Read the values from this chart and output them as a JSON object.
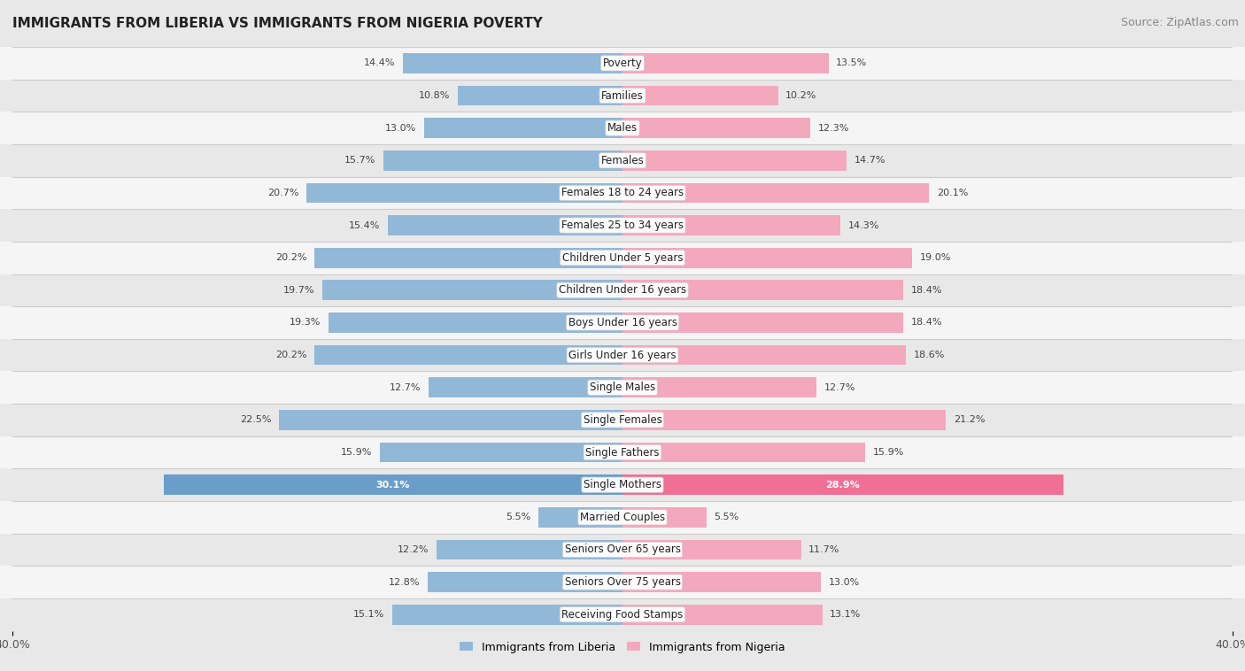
{
  "title": "IMMIGRANTS FROM LIBERIA VS IMMIGRANTS FROM NIGERIA POVERTY",
  "source": "Source: ZipAtlas.com",
  "categories": [
    "Poverty",
    "Families",
    "Males",
    "Females",
    "Females 18 to 24 years",
    "Females 25 to 34 years",
    "Children Under 5 years",
    "Children Under 16 years",
    "Boys Under 16 years",
    "Girls Under 16 years",
    "Single Males",
    "Single Females",
    "Single Fathers",
    "Single Mothers",
    "Married Couples",
    "Seniors Over 65 years",
    "Seniors Over 75 years",
    "Receiving Food Stamps"
  ],
  "liberia_values": [
    14.4,
    10.8,
    13.0,
    15.7,
    20.7,
    15.4,
    20.2,
    19.7,
    19.3,
    20.2,
    12.7,
    22.5,
    15.9,
    30.1,
    5.5,
    12.2,
    12.8,
    15.1
  ],
  "nigeria_values": [
    13.5,
    10.2,
    12.3,
    14.7,
    20.1,
    14.3,
    19.0,
    18.4,
    18.4,
    18.6,
    12.7,
    21.2,
    15.9,
    28.9,
    5.5,
    11.7,
    13.0,
    13.1
  ],
  "liberia_color": "#92b8d8",
  "nigeria_color": "#f4a8be",
  "liberia_highlight_color": "#6a9ec8",
  "nigeria_highlight_color": "#f07095",
  "bg_color": "#e8e8e8",
  "row_bg_even": "#f5f5f5",
  "row_bg_odd": "#e8e8e8",
  "axis_limit": 40.0,
  "bar_height": 0.62,
  "legend_liberia": "Immigrants from Liberia",
  "legend_nigeria": "Immigrants from Nigeria",
  "title_fontsize": 11,
  "source_fontsize": 9,
  "label_fontsize": 8.5,
  "value_fontsize": 8
}
